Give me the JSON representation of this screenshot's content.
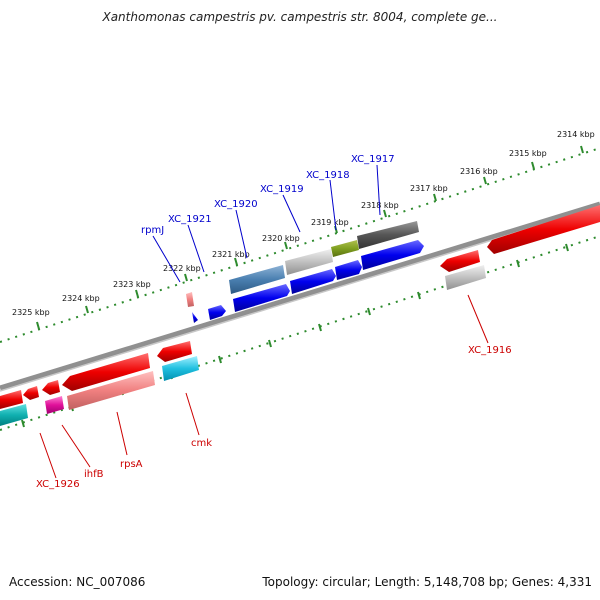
{
  "header": {
    "title": "Xanthomonas campestris pv. campestris str. 8004, complete ge..."
  },
  "footer": {
    "accession": "Accession: NC_007086",
    "stats": "Topology: circular; Length: 5,148,708 bp; Genes: 4,331"
  },
  "ticks": [
    "2314 kbp",
    "2315 kbp",
    "2316 kbp",
    "2317 kbp",
    "2318 kbp",
    "2319 kbp",
    "2320 kbp",
    "2321 kbp",
    "2322 kbp",
    "2323 kbp",
    "2324 kbp",
    "2325 kbp"
  ],
  "gene_labels_top": [
    "XC_1917",
    "XC_1918",
    "XC_1919",
    "XC_1920",
    "XC_1921",
    "rpmJ"
  ],
  "gene_labels_bottom": [
    "XC_1916",
    "cmk",
    "rpsA",
    "ihfB",
    "XC_1926"
  ],
  "colors": {
    "forward_strand_label": "#0000cc",
    "reverse_strand_label": "#cc0000",
    "forward_gene": "#0000ee",
    "reverse_gene": "#ee0000",
    "tick_green": "#2e8b2e",
    "backbone": "#808080"
  }
}
